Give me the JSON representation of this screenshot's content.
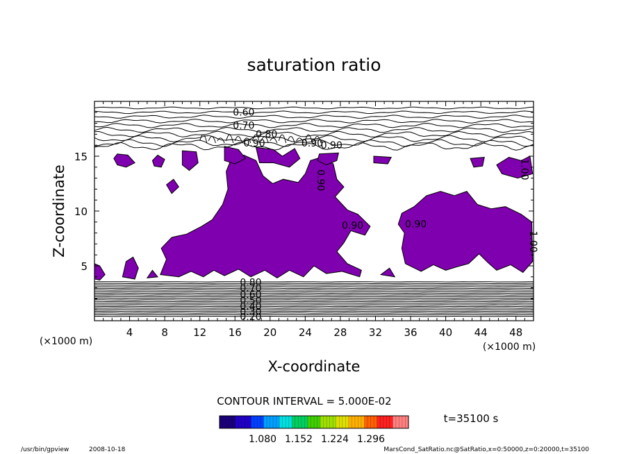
{
  "chart_data": {
    "type": "contour",
    "title": "saturation ratio",
    "xlabel": "X-coordinate",
    "ylabel": "Z-coordinate",
    "x_unit": "(×1000 m)",
    "z_unit": "(×1000 m)",
    "xlim": [
      0,
      50
    ],
    "ylim": [
      0,
      20
    ],
    "x_ticks": [
      4,
      8,
      12,
      16,
      20,
      24,
      28,
      32,
      36,
      40,
      44,
      48
    ],
    "y_ticks": [
      5,
      10,
      15
    ],
    "contour_labels": [
      "0.60",
      "0.70",
      "0.80",
      "0.90",
      "0.90",
      "0.90",
      "0.90",
      "0.90",
      "0.90",
      "0.80",
      "0.70",
      "0.60",
      "0.50",
      "0.40",
      "0.30",
      "0.20",
      "1.00",
      "1.00"
    ],
    "shading_levels": [
      "1.080",
      "1.152",
      "1.224",
      "1.296"
    ],
    "contour_interval_text": "CONTOUR INTERVAL = 5.000E-02",
    "time_text": "t=35100 s",
    "colormap": [
      "#1a007a",
      "#2200c8",
      "#0040ff",
      "#00a0ff",
      "#00e0e0",
      "#00d060",
      "#40d000",
      "#a0e000",
      "#e0e000",
      "#ffb000",
      "#ff6000",
      "#ff2020",
      "#ff8080"
    ],
    "fill_color": "#7f00af"
  },
  "footer": {
    "program": "/usr/bin/gpview",
    "date": "2008-10-18",
    "source": "MarsCond_SatRatio.nc@SatRatio,x=0:50000,z=0:20000,t=35100"
  }
}
